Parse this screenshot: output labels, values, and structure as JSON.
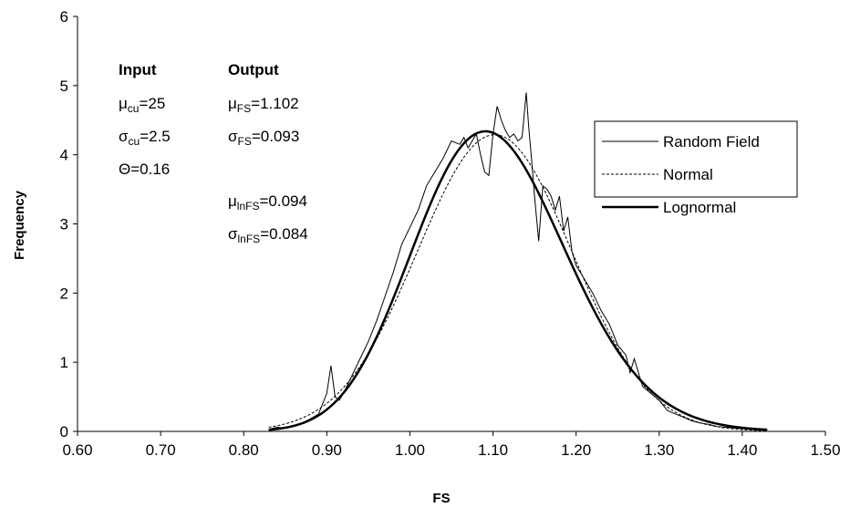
{
  "chart_data": {
    "type": "line",
    "title": "",
    "xlabel": "FS",
    "ylabel": "Frequency",
    "xlim": [
      0.6,
      1.5
    ],
    "ylim": [
      0,
      6
    ],
    "xticks": [
      "0.60",
      "0.70",
      "0.80",
      "0.90",
      "1.00",
      "1.10",
      "1.20",
      "1.30",
      "1.40",
      "1.50"
    ],
    "yticks": [
      "0",
      "1",
      "2",
      "3",
      "4",
      "5",
      "6"
    ],
    "grid": false,
    "legend_position": "top-right",
    "annotations": {
      "input_header": "Input",
      "output_header": "Output",
      "input": [
        {
          "sym": "μ",
          "sub": "cu",
          "val": "=25"
        },
        {
          "sym": "σ",
          "sub": "cu",
          "val": "=2.5"
        },
        {
          "sym": "Θ",
          "sub": "",
          "val": "=0.16"
        }
      ],
      "output": [
        {
          "sym": "μ",
          "sub": "FS",
          "val": "=1.102"
        },
        {
          "sym": "σ",
          "sub": "FS",
          "val": "=0.093"
        },
        {
          "sym": "μ",
          "sub": "lnFS",
          "val": "=0.094"
        },
        {
          "sym": "σ",
          "sub": "lnFS",
          "val": "=0.084"
        }
      ]
    },
    "series": [
      {
        "name": "Random Field",
        "style": "thin",
        "x": [
          0.83,
          0.84,
          0.85,
          0.86,
          0.87,
          0.88,
          0.89,
          0.9,
          0.905,
          0.91,
          0.915,
          0.92,
          0.93,
          0.94,
          0.95,
          0.96,
          0.97,
          0.98,
          0.99,
          1.0,
          1.01,
          1.02,
          1.03,
          1.04,
          1.05,
          1.06,
          1.065,
          1.07,
          1.075,
          1.08,
          1.085,
          1.09,
          1.095,
          1.1,
          1.105,
          1.11,
          1.115,
          1.12,
          1.125,
          1.13,
          1.135,
          1.14,
          1.143,
          1.147,
          1.15,
          1.155,
          1.16,
          1.165,
          1.17,
          1.175,
          1.18,
          1.185,
          1.19,
          1.195,
          1.2,
          1.21,
          1.22,
          1.23,
          1.24,
          1.25,
          1.26,
          1.265,
          1.27,
          1.28,
          1.29,
          1.3,
          1.31,
          1.32,
          1.33,
          1.34,
          1.35,
          1.36,
          1.37,
          1.38,
          1.39,
          1.4,
          1.41,
          1.42,
          1.43
        ],
        "y": [
          0.03,
          0.06,
          0.05,
          0.08,
          0.12,
          0.18,
          0.25,
          0.55,
          0.95,
          0.5,
          0.45,
          0.55,
          0.8,
          1.05,
          1.3,
          1.6,
          1.95,
          2.3,
          2.7,
          2.95,
          3.2,
          3.55,
          3.75,
          3.95,
          4.2,
          4.15,
          4.25,
          4.1,
          4.2,
          4.3,
          4.0,
          3.75,
          3.7,
          4.3,
          4.7,
          4.5,
          4.35,
          4.25,
          4.3,
          4.2,
          4.25,
          4.9,
          4.4,
          3.85,
          3.4,
          2.75,
          3.55,
          3.5,
          3.4,
          3.2,
          3.4,
          2.9,
          3.1,
          2.6,
          2.4,
          2.2,
          2.0,
          1.75,
          1.55,
          1.25,
          1.1,
          0.85,
          1.05,
          0.65,
          0.55,
          0.45,
          0.3,
          0.25,
          0.2,
          0.15,
          0.12,
          0.1,
          0.07,
          0.06,
          0.05,
          0.04,
          0.03,
          0.02,
          0.02
        ]
      },
      {
        "name": "Normal",
        "style": "dashed",
        "mean": 1.102,
        "sd": 0.093,
        "x_range": [
          0.83,
          1.43
        ]
      },
      {
        "name": "Lognormal",
        "style": "thick",
        "mean": 0.094,
        "sd": 0.084,
        "x_range": [
          0.83,
          1.43
        ]
      }
    ]
  }
}
